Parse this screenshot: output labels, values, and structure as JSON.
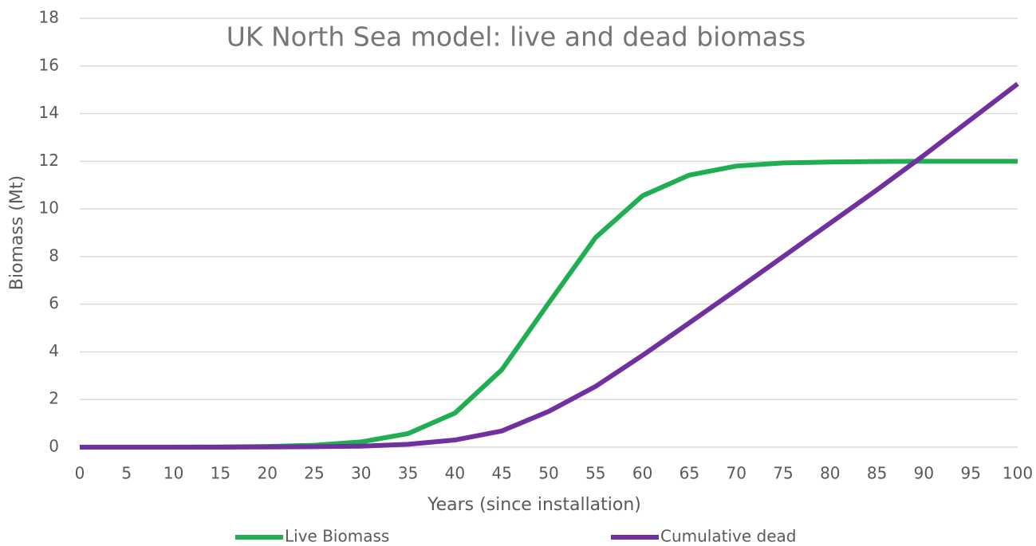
{
  "chart_data": {
    "type": "line",
    "title": "UK North Sea model: live and dead biomass",
    "xlabel": "Years (since installation)",
    "ylabel": "Biomass (Mt)",
    "x": [
      0,
      5,
      10,
      15,
      20,
      25,
      30,
      35,
      40,
      45,
      50,
      55,
      60,
      65,
      70,
      75,
      80,
      85,
      90,
      95,
      100
    ],
    "series": [
      {
        "name": "Live Biomass",
        "color": "#1fae52",
        "values": [
          0,
          0,
          0,
          0.01,
          0.03,
          0.08,
          0.22,
          0.57,
          1.43,
          3.25,
          6.05,
          8.8,
          10.55,
          11.42,
          11.8,
          11.93,
          11.97,
          11.99,
          12,
          12,
          12
        ]
      },
      {
        "name": "Cumulative dead",
        "color": "#7030a0",
        "values": [
          0,
          0,
          0,
          0,
          0.01,
          0.02,
          0.04,
          0.12,
          0.3,
          0.68,
          1.5,
          2.55,
          3.85,
          5.22,
          6.6,
          8.0,
          9.4,
          10.8,
          12.25,
          13.75,
          15.25
        ]
      }
    ],
    "xlim": [
      0,
      100
    ],
    "xticks": [
      0,
      5,
      10,
      15,
      20,
      25,
      30,
      35,
      40,
      45,
      50,
      55,
      60,
      65,
      70,
      75,
      80,
      85,
      90,
      95,
      100
    ],
    "ylim": [
      0,
      18
    ],
    "yticks": [
      0,
      2,
      4,
      6,
      8,
      10,
      12,
      14,
      16,
      18
    ],
    "grid": true,
    "legend": "bottom"
  }
}
